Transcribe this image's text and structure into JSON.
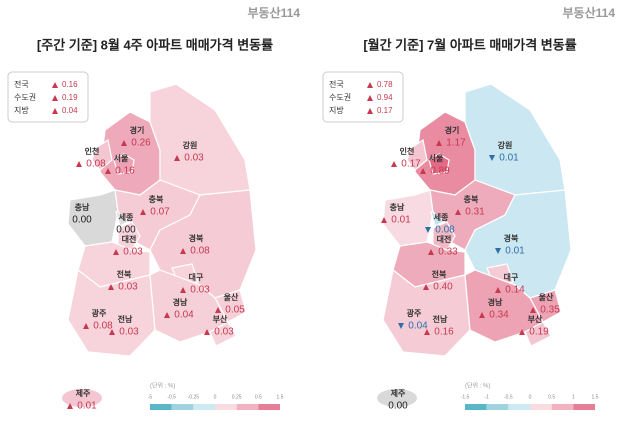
{
  "logo": "부동산114",
  "maps": [
    {
      "title": "[주간 기준] 8월 4주 아파트 매매가격 변동률",
      "summary": [
        {
          "label": "전국",
          "value": "0.16",
          "trend": "up"
        },
        {
          "label": "수도권",
          "value": "0.19",
          "trend": "up"
        },
        {
          "label": "지방",
          "value": "0.04",
          "trend": "up"
        }
      ],
      "regions": [
        {
          "name": "경기",
          "value": "0.26",
          "trend": "up",
          "color": "#eeaabb"
        },
        {
          "name": "인천",
          "value": "0.08",
          "trend": "up",
          "color": "#f4c6d1"
        },
        {
          "name": "서울",
          "value": "0.16",
          "trend": "up",
          "color": "#eaa2b4"
        },
        {
          "name": "강원",
          "value": "0.03",
          "trend": "up",
          "color": "#f7d3dc"
        },
        {
          "name": "충남",
          "value": "0.00",
          "trend": "flat",
          "color": "#d9d9d9"
        },
        {
          "name": "세종",
          "value": "0.00",
          "trend": "flat",
          "color": "#dedede"
        },
        {
          "name": "충북",
          "value": "0.07",
          "trend": "up",
          "color": "#f5cbd5"
        },
        {
          "name": "대전",
          "value": "0.03",
          "trend": "up",
          "color": "#f7d3dc"
        },
        {
          "name": "경북",
          "value": "0.08",
          "trend": "up",
          "color": "#f5cbd5"
        },
        {
          "name": "전북",
          "value": "0.03",
          "trend": "up",
          "color": "#f7d3dc"
        },
        {
          "name": "대구",
          "value": "0.03",
          "trend": "up",
          "color": "#f7d3dc"
        },
        {
          "name": "울산",
          "value": "0.05",
          "trend": "up",
          "color": "#f6cfd8"
        },
        {
          "name": "광주",
          "value": "0.08",
          "trend": "up",
          "color": "#f5cbd5"
        },
        {
          "name": "전남",
          "value": "0.03",
          "trend": "up",
          "color": "#f7d3dc"
        },
        {
          "name": "경남",
          "value": "0.04",
          "trend": "up",
          "color": "#f6d0d9"
        },
        {
          "name": "부산",
          "value": "0.03",
          "trend": "up",
          "color": "#f7d3dc"
        },
        {
          "name": "제주",
          "value": "0.01",
          "trend": "up",
          "color": "#f4c6d1"
        }
      ],
      "legend": {
        "unit": "(단위 : %)",
        "ticks": [
          "-5",
          "-0.5",
          "-0.25",
          "0",
          "0.25",
          "0.5",
          "1.5"
        ],
        "colors": [
          "#5bb5c9",
          "#9fd3e0",
          "#cde9f1",
          "#f9dbe2",
          "#f1b3c2",
          "#e57f97"
        ]
      }
    },
    {
      "title": "[월간 기준] 7월 아파트 매매가격 변동률",
      "summary": [
        {
          "label": "전국",
          "value": "0.78",
          "trend": "up"
        },
        {
          "label": "수도권",
          "value": "0.94",
          "trend": "up"
        },
        {
          "label": "지방",
          "value": "0.17",
          "trend": "up"
        }
      ],
      "regions": [
        {
          "name": "경기",
          "value": "1.17",
          "trend": "up",
          "color": "#e98ba1"
        },
        {
          "name": "인천",
          "value": "0.17",
          "trend": "up",
          "color": "#f4c6d1"
        },
        {
          "name": "서울",
          "value": "0.89",
          "trend": "up",
          "color": "#e26a86"
        },
        {
          "name": "강원",
          "value": "0.01",
          "trend": "down",
          "color": "#cbe7f1"
        },
        {
          "name": "충남",
          "value": "0.01",
          "trend": "up",
          "color": "#f8dbe2"
        },
        {
          "name": "세종",
          "value": "0.08",
          "trend": "down",
          "color": "#c5e3ee"
        },
        {
          "name": "충북",
          "value": "0.31",
          "trend": "up",
          "color": "#eeabbb"
        },
        {
          "name": "대전",
          "value": "0.33",
          "trend": "up",
          "color": "#f1b9c6"
        },
        {
          "name": "경북",
          "value": "0.01",
          "trend": "down",
          "color": "#cbe7f1"
        },
        {
          "name": "전북",
          "value": "0.40",
          "trend": "up",
          "color": "#eeabbb"
        },
        {
          "name": "대구",
          "value": "0.14",
          "trend": "up",
          "color": "#f5ccd6"
        },
        {
          "name": "울산",
          "value": "0.35",
          "trend": "up",
          "color": "#eea3b5"
        },
        {
          "name": "광주",
          "value": "0.04",
          "trend": "down",
          "color": "#c5e3ee"
        },
        {
          "name": "전남",
          "value": "0.16",
          "trend": "up",
          "color": "#f5ccd6"
        },
        {
          "name": "경남",
          "value": "0.34",
          "trend": "up",
          "color": "#eea3b5"
        },
        {
          "name": "부산",
          "value": "0.19",
          "trend": "up",
          "color": "#f4c6d1"
        },
        {
          "name": "제주",
          "value": "0.00",
          "trend": "flat",
          "color": "#d9d9d9"
        }
      ],
      "legend": {
        "unit": "(단위 : %)",
        "ticks": [
          "-1.5",
          "-1",
          "-0.5",
          "0",
          "0.5",
          "1",
          "1.5"
        ],
        "colors": [
          "#5bb5c9",
          "#9fd3e0",
          "#cde9f1",
          "#f9dbe2",
          "#f1b3c2",
          "#e57f97"
        ]
      }
    }
  ]
}
